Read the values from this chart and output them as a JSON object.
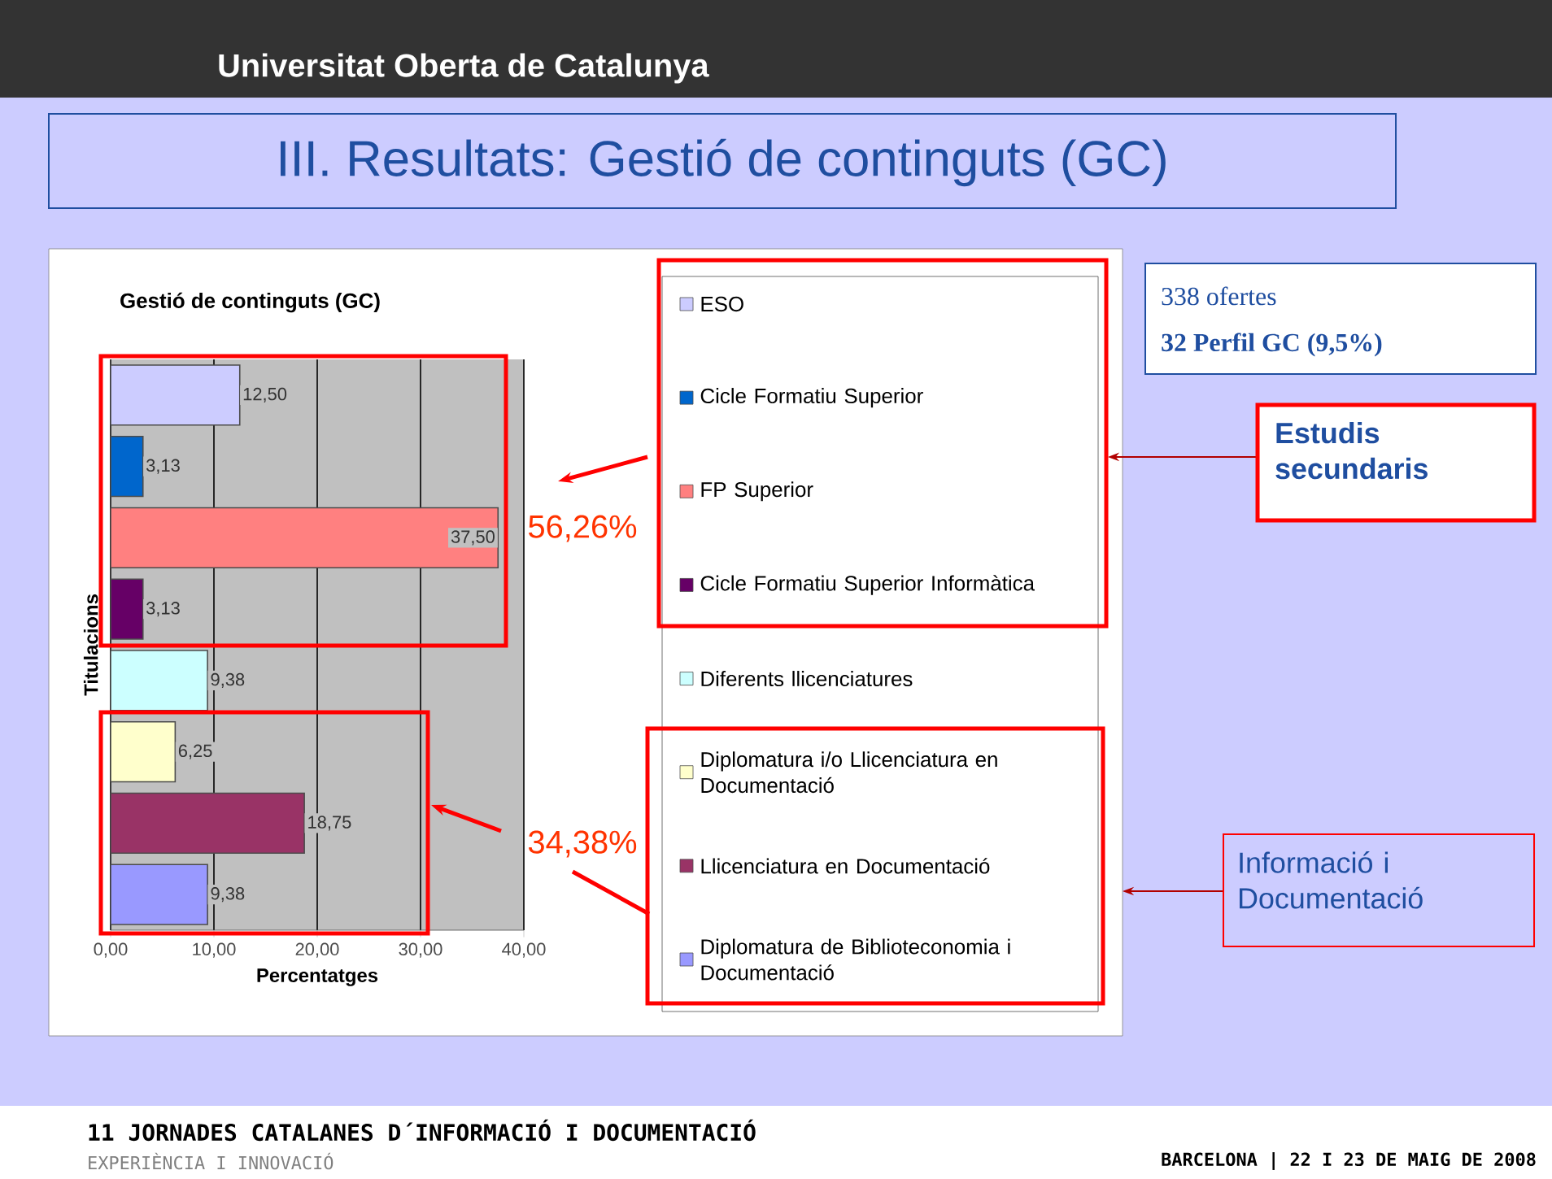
{
  "chart_data": {
    "type": "bar",
    "orientation": "horizontal",
    "title": "III. Resultats: Gestió de continguts (GC)",
    "subtitle": "Gestió de continguts (GC)",
    "xlabel": "Percentatges",
    "ylabel": "Titulacions",
    "categories": [
      null,
      null,
      null,
      null,
      null,
      null,
      null,
      null
    ],
    "series": [
      {
        "name": "ESO",
        "color": "#ccccff",
        "values": [
          12.5,
          null,
          null,
          null,
          null,
          null,
          null,
          null
        ],
        "value_labels": [
          "12,50",
          null,
          null,
          null,
          null,
          null,
          null,
          null
        ]
      },
      {
        "name": "Cicle Formatiu Superior",
        "color": "#0066cc",
        "values": [
          null,
          3.13,
          null,
          null,
          null,
          null,
          null,
          null
        ],
        "value_labels": [
          null,
          "3,13",
          null,
          null,
          null,
          null,
          null,
          null
        ]
      },
      {
        "name": "FP Superior",
        "color": "#ff8080",
        "values": [
          null,
          null,
          37.5,
          null,
          null,
          null,
          null,
          null
        ],
        "value_labels": [
          null,
          null,
          "37,50",
          null,
          null,
          null,
          null,
          null
        ]
      },
      {
        "name": "Cicle Formatiu Superior Informàtica",
        "color": "#660066",
        "values": [
          null,
          null,
          null,
          3.13,
          null,
          null,
          null,
          null
        ],
        "value_labels": [
          null,
          null,
          null,
          "3,13",
          null,
          null,
          null,
          null
        ]
      },
      {
        "name": "Diferents llicenciatures",
        "color": "#ccffff",
        "values": [
          null,
          null,
          null,
          null,
          9.38,
          null,
          null,
          null
        ],
        "value_labels": [
          null,
          null,
          null,
          null,
          "9,38",
          null,
          null,
          null
        ]
      },
      {
        "name": "Diplomatura i/o Llicenciatura en Documentació",
        "color": "#ffffcc",
        "values": [
          null,
          null,
          null,
          null,
          null,
          6.25,
          null,
          null
        ],
        "value_labels": [
          null,
          null,
          null,
          null,
          null,
          "6,25",
          null,
          null
        ]
      },
      {
        "name": "Llicenciatura en Documentació",
        "color": "#993366",
        "values": [
          null,
          null,
          null,
          null,
          null,
          null,
          18.75,
          null
        ],
        "value_labels": [
          null,
          null,
          null,
          null,
          null,
          null,
          "18,75",
          null
        ]
      },
      {
        "name": "Diplomatura de Biblioteconomia i Documentació",
        "color": "#9999ff",
        "values": [
          null,
          null,
          null,
          null,
          null,
          null,
          null,
          9.38
        ],
        "value_labels": [
          null,
          null,
          null,
          null,
          null,
          null,
          null,
          "9,38"
        ]
      }
    ],
    "xlim": [
      0,
      40
    ],
    "xticks": [
      {
        "value": 0,
        "label": "0,00"
      },
      {
        "value": 10,
        "label": "10,00"
      },
      {
        "value": 20,
        "label": "20,00"
      },
      {
        "value": 30,
        "label": "30,00"
      },
      {
        "value": 40,
        "label": "40,00"
      }
    ],
    "grid": "x",
    "legend": "right",
    "tick_labels": "x",
    "annotations": [
      "Universitat Oberta de Catalunya",
      "338 ofertes",
      "**32 Perfil GC (9,5%)**",
      "Estudis secundaris",
      "Informació i Documentació",
      "56,26%",
      "34,38%",
      "11 JORNADES CATALANES D´INFORMACIÓ I DOCUMENTACIÓ",
      "EXPERIÈNCIA I INNOVACIÓ",
      "BARCELONA | 22 I 23 DE MAIG DE 2008"
    ]
  }
}
